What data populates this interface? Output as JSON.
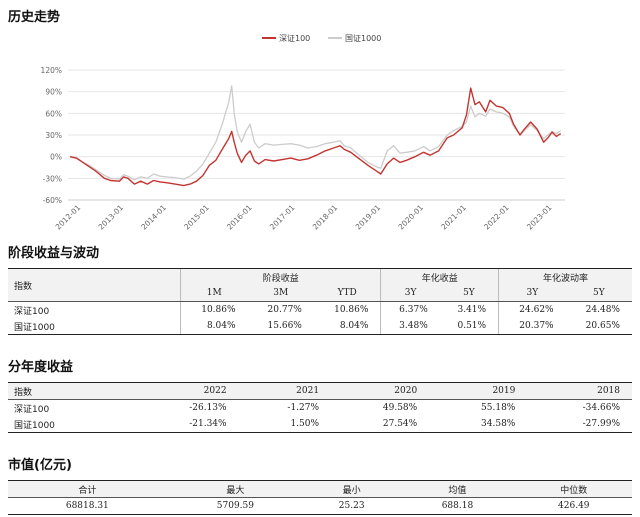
{
  "sections": {
    "history": "历史走势",
    "period": "阶段收益与波动",
    "annual": "分年度收益",
    "mktcap": "市值(亿元)"
  },
  "chart_data": {
    "type": "line",
    "legend": [
      "深证100",
      "国证1000"
    ],
    "legend_position": "top-center",
    "x_tick_labels": [
      "2012-01",
      "2013-01",
      "2014-01",
      "2015-01",
      "2016-01",
      "2017-01",
      "2018-01",
      "2019-01",
      "2020-01",
      "2021-01",
      "2022-01",
      "2023-01"
    ],
    "y_tick_labels": [
      "-60%",
      "-30%",
      "0%",
      "30%",
      "60%",
      "90%",
      "120%"
    ],
    "ylim": [
      -60,
      120
    ],
    "xlim": [
      2011.7,
      2023.3
    ],
    "grid": "horizontal",
    "colors": {
      "深证100": "#c23531",
      "国证1000": "#cccccc"
    },
    "series": [
      {
        "name": "深证100",
        "points": [
          [
            2011.75,
            0
          ],
          [
            2011.9,
            -2
          ],
          [
            2012.05,
            -8
          ],
          [
            2012.2,
            -14
          ],
          [
            2012.35,
            -20
          ],
          [
            2012.55,
            -30
          ],
          [
            2012.7,
            -33
          ],
          [
            2012.9,
            -34
          ],
          [
            2013.0,
            -28
          ],
          [
            2013.1,
            -30
          ],
          [
            2013.25,
            -38
          ],
          [
            2013.4,
            -34
          ],
          [
            2013.55,
            -38
          ],
          [
            2013.7,
            -33
          ],
          [
            2013.85,
            -35
          ],
          [
            2014.0,
            -36
          ],
          [
            2014.2,
            -38
          ],
          [
            2014.4,
            -40
          ],
          [
            2014.55,
            -38
          ],
          [
            2014.7,
            -34
          ],
          [
            2014.85,
            -26
          ],
          [
            2015.0,
            -12
          ],
          [
            2015.15,
            -5
          ],
          [
            2015.3,
            10
          ],
          [
            2015.45,
            25
          ],
          [
            2015.52,
            35
          ],
          [
            2015.58,
            20
          ],
          [
            2015.65,
            5
          ],
          [
            2015.75,
            -8
          ],
          [
            2015.85,
            2
          ],
          [
            2015.95,
            8
          ],
          [
            2016.05,
            -6
          ],
          [
            2016.15,
            -10
          ],
          [
            2016.3,
            -4
          ],
          [
            2016.5,
            -6
          ],
          [
            2016.7,
            -4
          ],
          [
            2016.9,
            -2
          ],
          [
            2017.1,
            -5
          ],
          [
            2017.3,
            -3
          ],
          [
            2017.5,
            2
          ],
          [
            2017.7,
            8
          ],
          [
            2017.9,
            12
          ],
          [
            2018.05,
            15
          ],
          [
            2018.15,
            10
          ],
          [
            2018.3,
            6
          ],
          [
            2018.5,
            -3
          ],
          [
            2018.7,
            -12
          ],
          [
            2018.9,
            -20
          ],
          [
            2019.0,
            -24
          ],
          [
            2019.15,
            -10
          ],
          [
            2019.3,
            -2
          ],
          [
            2019.45,
            -8
          ],
          [
            2019.6,
            -5
          ],
          [
            2019.8,
            0
          ],
          [
            2020.0,
            6
          ],
          [
            2020.15,
            2
          ],
          [
            2020.35,
            8
          ],
          [
            2020.55,
            26
          ],
          [
            2020.7,
            30
          ],
          [
            2020.9,
            40
          ],
          [
            2021.0,
            58
          ],
          [
            2021.1,
            95
          ],
          [
            2021.2,
            72
          ],
          [
            2021.3,
            76
          ],
          [
            2021.45,
            62
          ],
          [
            2021.55,
            78
          ],
          [
            2021.7,
            70
          ],
          [
            2021.85,
            68
          ],
          [
            2022.0,
            60
          ],
          [
            2022.1,
            45
          ],
          [
            2022.25,
            30
          ],
          [
            2022.35,
            38
          ],
          [
            2022.5,
            48
          ],
          [
            2022.65,
            38
          ],
          [
            2022.8,
            20
          ],
          [
            2022.9,
            26
          ],
          [
            2023.0,
            34
          ],
          [
            2023.1,
            28
          ],
          [
            2023.2,
            32
          ]
        ]
      },
      {
        "name": "国证1000",
        "points": [
          [
            2011.75,
            0
          ],
          [
            2011.9,
            -3
          ],
          [
            2012.05,
            -8
          ],
          [
            2012.2,
            -12
          ],
          [
            2012.35,
            -18
          ],
          [
            2012.55,
            -26
          ],
          [
            2012.7,
            -30
          ],
          [
            2012.9,
            -31
          ],
          [
            2013.0,
            -25
          ],
          [
            2013.1,
            -27
          ],
          [
            2013.25,
            -32
          ],
          [
            2013.4,
            -28
          ],
          [
            2013.55,
            -30
          ],
          [
            2013.7,
            -24
          ],
          [
            2013.85,
            -27
          ],
          [
            2014.0,
            -28
          ],
          [
            2014.2,
            -29
          ],
          [
            2014.4,
            -31
          ],
          [
            2014.55,
            -27
          ],
          [
            2014.7,
            -20
          ],
          [
            2014.85,
            -10
          ],
          [
            2015.0,
            5
          ],
          [
            2015.15,
            20
          ],
          [
            2015.3,
            45
          ],
          [
            2015.45,
            75
          ],
          [
            2015.52,
            98
          ],
          [
            2015.58,
            60
          ],
          [
            2015.65,
            35
          ],
          [
            2015.75,
            20
          ],
          [
            2015.85,
            35
          ],
          [
            2015.95,
            45
          ],
          [
            2016.05,
            20
          ],
          [
            2016.15,
            12
          ],
          [
            2016.3,
            18
          ],
          [
            2016.5,
            16
          ],
          [
            2016.7,
            17
          ],
          [
            2016.9,
            18
          ],
          [
            2017.1,
            16
          ],
          [
            2017.3,
            12
          ],
          [
            2017.5,
            14
          ],
          [
            2017.7,
            18
          ],
          [
            2017.9,
            20
          ],
          [
            2018.05,
            22
          ],
          [
            2018.15,
            15
          ],
          [
            2018.3,
            12
          ],
          [
            2018.5,
            2
          ],
          [
            2018.7,
            -8
          ],
          [
            2018.9,
            -14
          ],
          [
            2019.0,
            -16
          ],
          [
            2019.15,
            8
          ],
          [
            2019.3,
            15
          ],
          [
            2019.45,
            5
          ],
          [
            2019.6,
            6
          ],
          [
            2019.8,
            8
          ],
          [
            2020.0,
            14
          ],
          [
            2020.15,
            8
          ],
          [
            2020.35,
            14
          ],
          [
            2020.55,
            30
          ],
          [
            2020.7,
            36
          ],
          [
            2020.9,
            42
          ],
          [
            2021.0,
            48
          ],
          [
            2021.1,
            70
          ],
          [
            2021.2,
            55
          ],
          [
            2021.3,
            60
          ],
          [
            2021.45,
            56
          ],
          [
            2021.55,
            66
          ],
          [
            2021.7,
            62
          ],
          [
            2021.85,
            60
          ],
          [
            2022.0,
            55
          ],
          [
            2022.1,
            42
          ],
          [
            2022.25,
            30
          ],
          [
            2022.35,
            36
          ],
          [
            2022.5,
            44
          ],
          [
            2022.65,
            36
          ],
          [
            2022.8,
            25
          ],
          [
            2022.9,
            30
          ],
          [
            2023.0,
            35
          ],
          [
            2023.1,
            32
          ],
          [
            2023.2,
            36
          ]
        ]
      }
    ]
  },
  "period_table": {
    "col_index": "指数",
    "group_headers": [
      "阶段收益",
      "年化收益",
      "年化波动率"
    ],
    "sub_headers": [
      "1M",
      "3M",
      "YTD",
      "3Y",
      "5Y",
      "3Y",
      "5Y"
    ],
    "rows": [
      {
        "name": "深证100",
        "values": [
          "10.86%",
          "20.77%",
          "10.86%",
          "6.37%",
          "3.41%",
          "24.62%",
          "24.48%"
        ]
      },
      {
        "name": "国证1000",
        "values": [
          "8.04%",
          "15.66%",
          "8.04%",
          "3.48%",
          "0.51%",
          "20.37%",
          "20.65%"
        ]
      }
    ]
  },
  "annual_table": {
    "col_index": "指数",
    "years": [
      "2022",
      "2021",
      "2020",
      "2019",
      "2018"
    ],
    "rows": [
      {
        "name": "深证100",
        "values": [
          "-26.13%",
          "-1.27%",
          "49.58%",
          "55.18%",
          "-34.66%"
        ]
      },
      {
        "name": "国证1000",
        "values": [
          "-21.34%",
          "1.50%",
          "27.54%",
          "34.58%",
          "-27.99%"
        ]
      }
    ]
  },
  "mktcap_table": {
    "headers": [
      "合计",
      "最大",
      "最小",
      "均值",
      "中位数"
    ],
    "values": [
      "68818.31",
      "5709.59",
      "25.23",
      "688.18",
      "426.49"
    ]
  }
}
